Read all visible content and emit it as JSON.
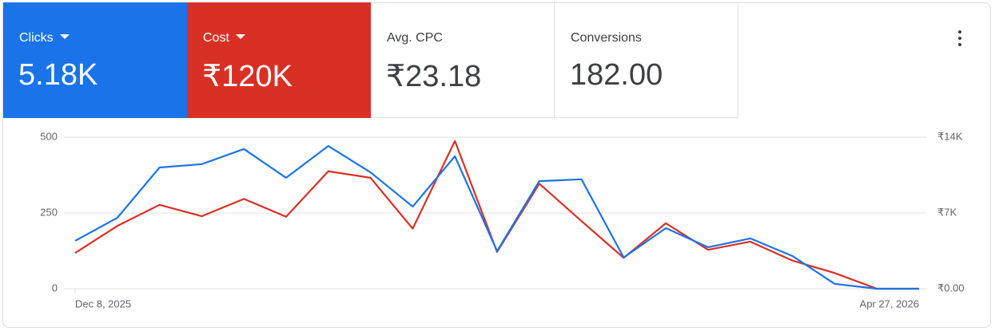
{
  "scorecards": [
    {
      "value": "5.18K"
    },
    {
      "value": "₹120K"
    },
    {
      "label": "Avg. CPC",
      "value": "₹23.18"
    },
    {
      "label": "Conversions",
      "value": "182.00"
    }
  ],
  "chart_data": {
    "type": "line",
    "categories": [
      "Dec 8, 2025",
      null,
      null,
      null,
      null,
      null,
      null,
      null,
      null,
      null,
      null,
      null,
      null,
      null,
      null,
      null,
      null,
      null,
      null,
      null,
      "Apr 27, 2026"
    ],
    "series": [
      {
        "name": "Clicks",
        "color": "#1a73e8",
        "values": [
          158,
          234,
          400,
          411,
          461,
          366,
          471,
          384,
          271,
          437,
          124,
          355,
          361,
          103,
          200,
          137,
          166,
          108,
          16,
          0,
          0
        ]
      },
      {
        "name": "Cost",
        "color": "#d93025",
        "axis": "y2",
        "values": [
          3300,
          5800,
          7750,
          6700,
          8300,
          6650,
          10850,
          10250,
          5550,
          13650,
          3400,
          9700,
          6250,
          2850,
          6050,
          3600,
          4350,
          2600,
          1450,
          0,
          0
        ]
      }
    ],
    "ylim": [
      0,
      500
    ],
    "yticks": [
      0,
      250,
      500
    ],
    "y2lim": [
      0,
      14000
    ],
    "y2ticks": [
      {
        "value": 0,
        "label": "₹0.00"
      },
      {
        "value": 7000,
        "label": "₹7K"
      },
      {
        "value": 14000,
        "label": "₹14K"
      }
    ],
    "grid": true
  }
}
